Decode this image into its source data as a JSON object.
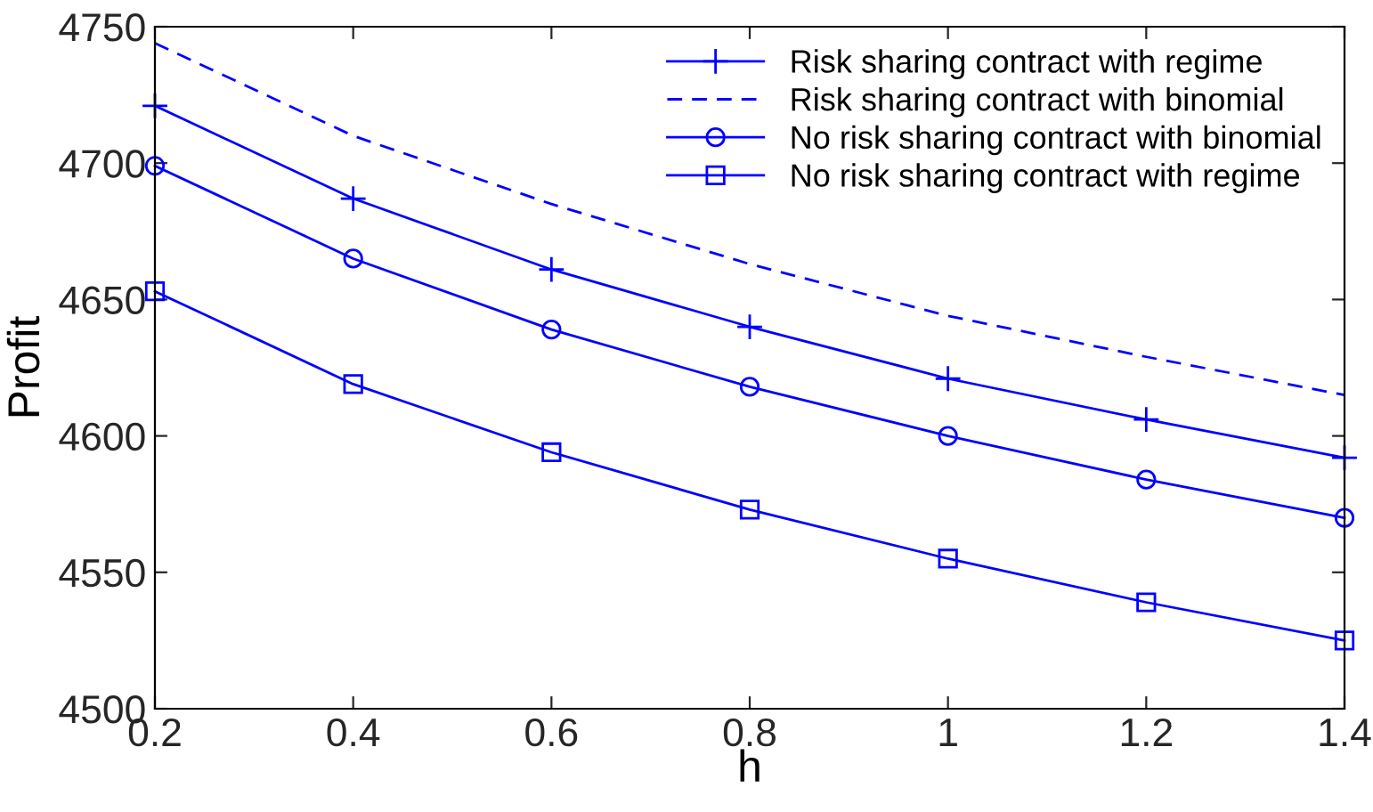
{
  "chart_data": {
    "type": "line",
    "xlabel": "h",
    "ylabel": "Profit",
    "x": [
      0.2,
      0.4,
      0.6,
      0.8,
      1.0,
      1.2,
      1.4
    ],
    "series": [
      {
        "name": "Risk sharing contract with regime",
        "color": "#0000ff",
        "marker": "cross",
        "line_style": "solid",
        "values": [
          4721,
          4687,
          4661,
          4640,
          4621,
          4606,
          4592
        ]
      },
      {
        "name": "Risk sharing contract with binomial",
        "color": "#0000ff",
        "marker": "none",
        "line_style": "dashed",
        "values": [
          4744,
          4710,
          4685,
          4663,
          4644,
          4629,
          4615
        ]
      },
      {
        "name": "No risk sharing contract with binomial",
        "color": "#0000ff",
        "marker": "circle",
        "line_style": "solid",
        "values": [
          4699,
          4665,
          4639,
          4618,
          4600,
          4584,
          4570
        ]
      },
      {
        "name": "No risk sharing contract with regime",
        "color": "#0000ff",
        "marker": "square",
        "line_style": "solid",
        "values": [
          4653,
          4619,
          4594,
          4573,
          4555,
          4539,
          4525
        ]
      }
    ],
    "xlim": [
      0.2,
      1.4
    ],
    "xticks": [
      0.2,
      0.4,
      0.6,
      0.8,
      1,
      1.2,
      1.4
    ],
    "ylim": [
      4500,
      4750
    ],
    "yticks": [
      4500,
      4550,
      4600,
      4650,
      4700,
      4750
    ],
    "grid": false,
    "legend": "top right"
  }
}
